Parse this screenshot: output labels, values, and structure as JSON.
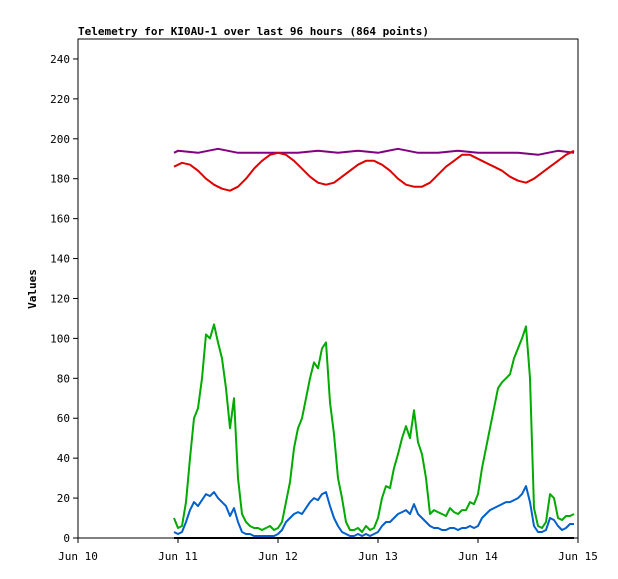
{
  "chart_data": {
    "type": "line",
    "title": "Telemetry for KI0AU-1 over last 96 hours (864 points)",
    "xlabel": "",
    "ylabel": "Values",
    "ylim": [
      0,
      250
    ],
    "xlim": [
      0,
      5
    ],
    "y_ticks": [
      0,
      20,
      40,
      60,
      80,
      100,
      120,
      140,
      160,
      180,
      200,
      220,
      240
    ],
    "x_ticks": [
      {
        "pos": 0,
        "label": "Jun 10"
      },
      {
        "pos": 1,
        "label": "Jun 11"
      },
      {
        "pos": 2,
        "label": "Jun 12"
      },
      {
        "pos": 3,
        "label": "Jun 13"
      },
      {
        "pos": 4,
        "label": "Jun 14"
      },
      {
        "pos": 5,
        "label": "Jun 15"
      }
    ],
    "grid": false,
    "series": [
      {
        "color": "#800080",
        "x": [
          0.96,
          1.0,
          1.2,
          1.4,
          1.6,
          1.8,
          2.0,
          2.2,
          2.4,
          2.6,
          2.8,
          3.0,
          3.2,
          3.4,
          3.6,
          3.8,
          4.0,
          4.2,
          4.4,
          4.6,
          4.8,
          4.96
        ],
        "values": [
          193,
          194,
          193,
          195,
          193,
          193,
          193,
          193,
          194,
          193,
          194,
          193,
          195,
          193,
          193,
          194,
          193,
          193,
          193,
          192,
          194,
          193
        ]
      },
      {
        "color": "#dd0000",
        "x": [
          0.96,
          1.04,
          1.12,
          1.2,
          1.28,
          1.36,
          1.44,
          1.52,
          1.6,
          1.68,
          1.76,
          1.84,
          1.92,
          2.0,
          2.08,
          2.16,
          2.24,
          2.32,
          2.4,
          2.48,
          2.56,
          2.64,
          2.72,
          2.8,
          2.88,
          2.96,
          3.04,
          3.12,
          3.2,
          3.28,
          3.36,
          3.44,
          3.52,
          3.6,
          3.68,
          3.76,
          3.84,
          3.92,
          4.0,
          4.08,
          4.16,
          4.24,
          4.32,
          4.4,
          4.48,
          4.56,
          4.64,
          4.72,
          4.8,
          4.88,
          4.96
        ],
        "values": [
          186,
          188,
          187,
          184,
          180,
          177,
          175,
          174,
          176,
          180,
          185,
          189,
          192,
          193,
          192,
          189,
          185,
          181,
          178,
          177,
          178,
          181,
          184,
          187,
          189,
          189,
          187,
          184,
          180,
          177,
          176,
          176,
          178,
          182,
          186,
          189,
          192,
          192,
          190,
          188,
          186,
          184,
          181,
          179,
          178,
          180,
          183,
          186,
          189,
          192,
          194
        ]
      },
      {
        "color": "#00aa00",
        "x": [
          0.96,
          1.0,
          1.04,
          1.08,
          1.12,
          1.16,
          1.2,
          1.24,
          1.28,
          1.32,
          1.36,
          1.4,
          1.44,
          1.48,
          1.52,
          1.56,
          1.6,
          1.64,
          1.68,
          1.72,
          1.76,
          1.8,
          1.84,
          1.88,
          1.92,
          1.96,
          2.0,
          2.04,
          2.08,
          2.12,
          2.16,
          2.2,
          2.24,
          2.28,
          2.32,
          2.36,
          2.4,
          2.44,
          2.48,
          2.52,
          2.56,
          2.6,
          2.64,
          2.68,
          2.72,
          2.76,
          2.8,
          2.84,
          2.88,
          2.92,
          2.96,
          3.0,
          3.04,
          3.08,
          3.12,
          3.16,
          3.2,
          3.24,
          3.28,
          3.32,
          3.36,
          3.4,
          3.44,
          3.48,
          3.52,
          3.56,
          3.6,
          3.64,
          3.68,
          3.72,
          3.76,
          3.8,
          3.84,
          3.88,
          3.92,
          3.96,
          4.0,
          4.04,
          4.08,
          4.12,
          4.16,
          4.2,
          4.24,
          4.28,
          4.32,
          4.36,
          4.4,
          4.44,
          4.48,
          4.52,
          4.56,
          4.6,
          4.64,
          4.68,
          4.72,
          4.76,
          4.8,
          4.84,
          4.88,
          4.92,
          4.96
        ],
        "values": [
          10,
          5,
          6,
          18,
          40,
          60,
          65,
          80,
          102,
          100,
          107,
          98,
          90,
          75,
          55,
          70,
          30,
          12,
          8,
          6,
          5,
          5,
          4,
          5,
          6,
          4,
          5,
          8,
          18,
          28,
          45,
          55,
          60,
          70,
          80,
          88,
          85,
          95,
          98,
          68,
          52,
          30,
          20,
          8,
          4,
          4,
          5,
          3,
          6,
          4,
          5,
          10,
          20,
          26,
          25,
          35,
          42,
          50,
          56,
          50,
          64,
          48,
          42,
          30,
          12,
          14,
          13,
          12,
          11,
          15,
          13,
          12,
          14,
          14,
          18,
          17,
          22,
          35,
          45,
          55,
          65,
          75,
          78,
          80,
          82,
          90,
          95,
          100,
          106,
          80,
          15,
          6,
          5,
          8,
          22,
          20,
          10,
          9,
          11,
          11,
          12
        ]
      },
      {
        "color": "#0060cc",
        "x": [
          0.96,
          1.0,
          1.04,
          1.08,
          1.12,
          1.16,
          1.2,
          1.24,
          1.28,
          1.32,
          1.36,
          1.4,
          1.44,
          1.48,
          1.52,
          1.56,
          1.6,
          1.64,
          1.68,
          1.72,
          1.76,
          1.8,
          1.84,
          1.88,
          1.92,
          1.96,
          2.0,
          2.04,
          2.08,
          2.12,
          2.16,
          2.2,
          2.24,
          2.28,
          2.32,
          2.36,
          2.4,
          2.44,
          2.48,
          2.52,
          2.56,
          2.6,
          2.64,
          2.68,
          2.72,
          2.76,
          2.8,
          2.84,
          2.88,
          2.92,
          2.96,
          3.0,
          3.04,
          3.08,
          3.12,
          3.16,
          3.2,
          3.24,
          3.28,
          3.32,
          3.36,
          3.4,
          3.44,
          3.48,
          3.52,
          3.56,
          3.6,
          3.64,
          3.68,
          3.72,
          3.76,
          3.8,
          3.84,
          3.88,
          3.92,
          3.96,
          4.0,
          4.04,
          4.08,
          4.12,
          4.16,
          4.2,
          4.24,
          4.28,
          4.32,
          4.36,
          4.4,
          4.44,
          4.48,
          4.52,
          4.56,
          4.6,
          4.64,
          4.68,
          4.72,
          4.76,
          4.8,
          4.84,
          4.88,
          4.92,
          4.96
        ],
        "values": [
          3,
          2,
          3,
          8,
          14,
          18,
          16,
          19,
          22,
          21,
          23,
          20,
          18,
          16,
          11,
          15,
          8,
          3,
          2,
          2,
          1,
          1,
          1,
          1,
          1,
          1,
          2,
          4,
          8,
          10,
          12,
          13,
          12,
          15,
          18,
          20,
          19,
          22,
          23,
          16,
          10,
          6,
          3,
          2,
          1,
          1,
          2,
          1,
          2,
          1,
          2,
          3,
          6,
          8,
          8,
          10,
          12,
          13,
          14,
          12,
          17,
          12,
          10,
          8,
          6,
          5,
          5,
          4,
          4,
          5,
          5,
          4,
          5,
          5,
          6,
          5,
          6,
          10,
          12,
          14,
          15,
          16,
          17,
          18,
          18,
          19,
          20,
          22,
          26,
          18,
          6,
          3,
          3,
          4,
          10,
          9,
          6,
          4,
          5,
          7,
          7
        ]
      },
      {
        "color": "#000000",
        "x": [
          0.96,
          4.96
        ],
        "values": [
          0,
          0
        ]
      }
    ]
  }
}
